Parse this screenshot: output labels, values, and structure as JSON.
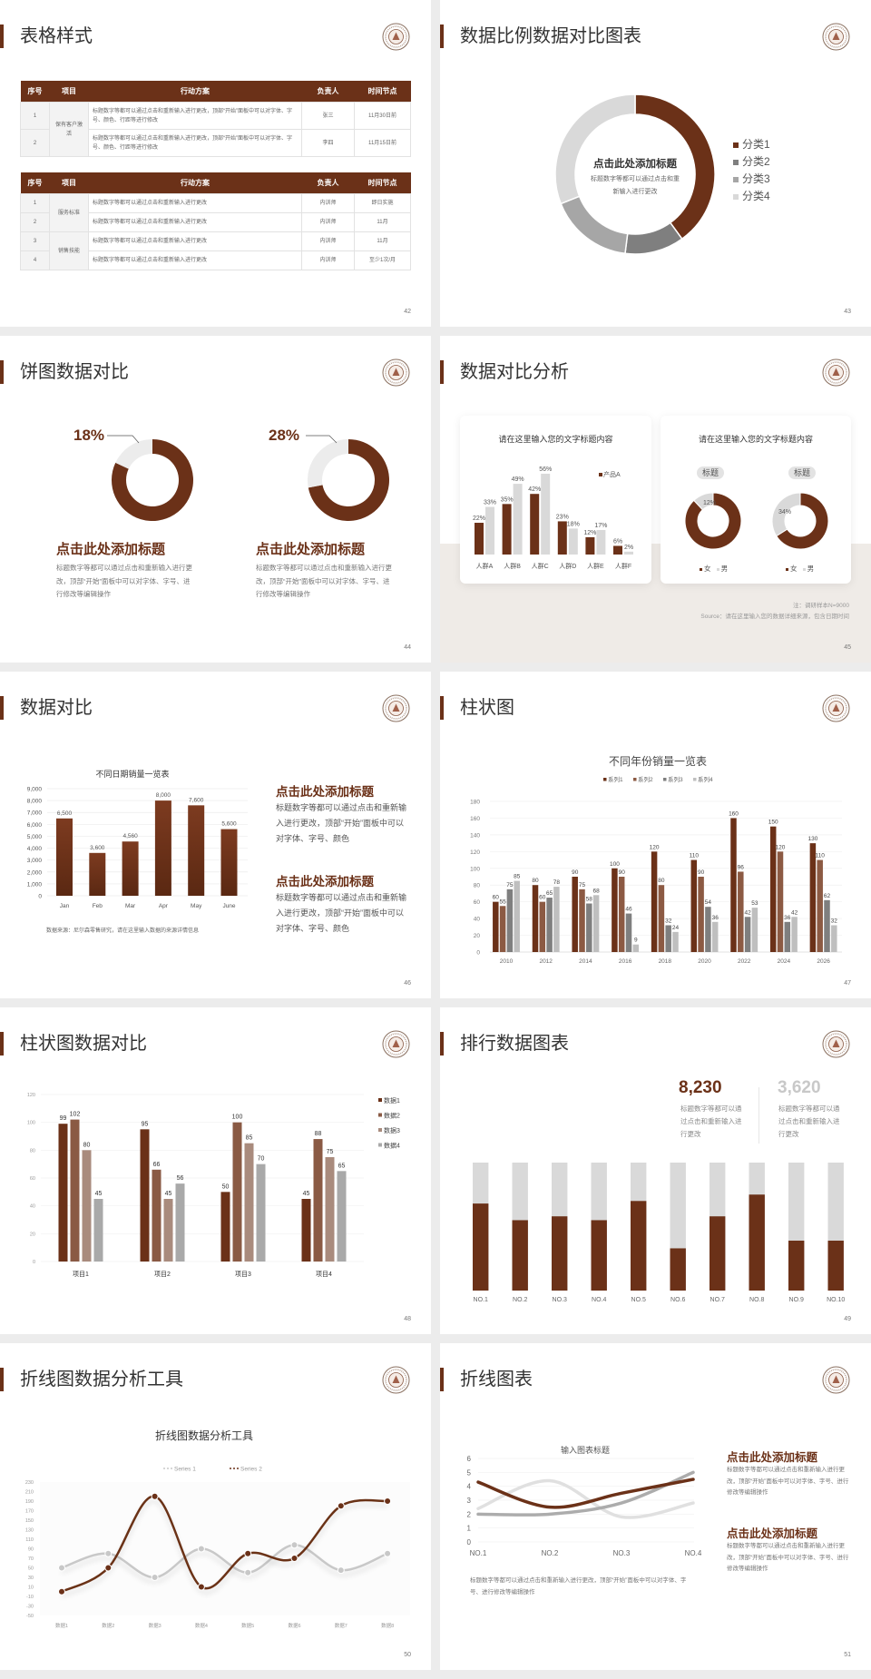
{
  "colors": {
    "accent": "#6b3118",
    "light_gray": "#d9d9d9",
    "mid_gray": "#8c8c8c",
    "background": "#ececec",
    "beige": "#efebe7"
  },
  "logo_icon": "university-seal",
  "s42": {
    "title": "表格样式",
    "page": "42",
    "headers": [
      "序号",
      "项目",
      "行动方案",
      "负责人",
      "时间节点"
    ],
    "table1": {
      "group": "保有客户激活",
      "rows": [
        [
          "1",
          "标题数字等都可以通过点击和重新输入进行更改，顶部“开始”面板中可以对字体、字号、颜色、行距等进行修改",
          "张三",
          "11月30日前"
        ],
        [
          "2",
          "标题数字等都可以通过点击和重新输入进行更改，顶部“开始”面板中可以对字体、字号、颜色、行距等进行修改",
          "李四",
          "11月15日前"
        ]
      ]
    },
    "table2": {
      "groups": [
        "服务标准",
        "销售技能"
      ],
      "rows": [
        [
          "1",
          "标题数字等都可以通过点击和重新输入进行更改",
          "内训师",
          "即日实施"
        ],
        [
          "2",
          "标题数字等都可以通过点击和重新输入进行更改",
          "内训师",
          "11月"
        ],
        [
          "3",
          "标题数字等都可以通过点击和重新输入进行更改",
          "内训师",
          "11月"
        ],
        [
          "4",
          "标题数字等都可以通过点击和重新输入进行更改",
          "内训师",
          "至少1次/月"
        ]
      ]
    }
  },
  "s43": {
    "title": "数据比例数据对比图表",
    "page": "43",
    "center_title": "点击此处添加标题",
    "center_text": "标题数字等都可以通过点击和重新输入进行更改"
  },
  "s44": {
    "title": "饼图数据对比",
    "page": "44",
    "items": [
      {
        "heading": "点击此处添加标题",
        "text": "标题数字等都可以通过点击和重新输入进行更改，顶部“开始”面板中可以对字体、字号、进行修改等编辑操作"
      },
      {
        "heading": "点击此处添加标题",
        "text": "标题数字等都可以通过点击和重新输入进行更改，顶部“开始”面板中可以对字体、字号、进行修改等编辑操作"
      }
    ]
  },
  "s45": {
    "title": "数据对比分析",
    "page": "45",
    "card1_title": "请在这里输入您的文字标题内容",
    "card2_title": "请在这里输入您的文字标题内容",
    "pills": [
      "标题",
      "标题"
    ],
    "note": "注：调研样本N=9000",
    "source": "Source：请在这里输入您的数据详细来源，包含日期时间"
  },
  "s46": {
    "title": "数据对比",
    "page": "46",
    "source": "数据来源：尼尔森零售研究，请在这里输入数据的来源详情信息",
    "blocks": [
      {
        "heading": "点击此处添加标题",
        "text": "标题数字等都可以通过点击和重新输入进行更改，顶部“开始”面板中可以对字体、字号、颜色"
      },
      {
        "heading": "点击此处添加标题",
        "text": "标题数字等都可以通过点击和重新输入进行更改，顶部“开始”面板中可以对字体、字号、颜色"
      }
    ]
  },
  "s47": {
    "title": "柱状图",
    "page": "47"
  },
  "s48": {
    "title": "柱状图数据对比",
    "page": "48"
  },
  "s49": {
    "title": "排行数据图表",
    "page": "49",
    "stats": [
      {
        "value": "8,230",
        "text": "标题数字等都可以通过点击和重新输入进行更改"
      },
      {
        "value": "3,620",
        "text": "标题数字等都可以通过点击和重新输入进行更改"
      }
    ]
  },
  "s50": {
    "title": "折线图数据分析工具",
    "page": "50"
  },
  "s51": {
    "title": "折线图表",
    "page": "51",
    "caption": "标题数字等都可以通过点击和重新输入进行更改，顶部“开始”面板中可以对字体、字号、进行修改等编辑操作",
    "blocks": [
      {
        "heading": "点击此处添加标题",
        "text": "标题数字等都可以通过点击和重新输入进行更改，顶部“开始”面板中可以对字体、字号、进行修改等编辑操作"
      },
      {
        "heading": "点击此处添加标题",
        "text": "标题数字等都可以通过点击和重新输入进行更改，顶部“开始”面板中可以对字体、字号、进行修改等编辑操作"
      }
    ]
  },
  "chart_data": [
    {
      "type": "pie",
      "variant": "donut",
      "categories": [
        "分类1",
        "分类2",
        "分类3",
        "分类4"
      ],
      "values": [
        40,
        12,
        17,
        31
      ],
      "colors": [
        "#6b3118",
        "#7f7f7f",
        "#a6a6a6",
        "#d9d9d9"
      ],
      "legend": "right"
    },
    {
      "type": "pie",
      "variant": "donut",
      "values": [
        82,
        18
      ],
      "label": "18%",
      "colors": [
        "#6b3118",
        "#ececec"
      ]
    },
    {
      "type": "pie",
      "variant": "donut",
      "values": [
        72,
        28
      ],
      "label": "28%",
      "colors": [
        "#6b3118",
        "#ececec"
      ]
    },
    {
      "type": "bar",
      "categories": [
        "人群A",
        "人群B",
        "人群C",
        "人群D",
        "人群E",
        "人群F"
      ],
      "series": [
        {
          "name": "产品A",
          "values": [
            22,
            35,
            42,
            23,
            12,
            6
          ],
          "color": "#6b3118"
        },
        {
          "values": [
            33,
            49,
            56,
            18,
            17,
            2
          ],
          "color": "#d9d9d9"
        }
      ],
      "unit": "%",
      "legend": "top-right"
    },
    {
      "type": "pie",
      "variant": "donut",
      "categories": [
        "女",
        "男"
      ],
      "values": [
        88,
        12
      ],
      "label": "12%",
      "colors": [
        "#6b3118",
        "#d9d9d9"
      ],
      "legend": "bottom"
    },
    {
      "type": "pie",
      "variant": "donut",
      "categories": [
        "女",
        "男"
      ],
      "values": [
        66,
        34
      ],
      "label": "34%",
      "colors": [
        "#6b3118",
        "#d9d9d9"
      ],
      "legend": "bottom"
    },
    {
      "type": "bar",
      "title": "不同日期销量一览表",
      "categories": [
        "Jan",
        "Feb",
        "Mar",
        "Apr",
        "May",
        "June"
      ],
      "values": [
        6500,
        3600,
        4560,
        8000,
        7600,
        5600
      ],
      "value_labels": [
        "6,500",
        "3,600",
        "4,560",
        "8,000",
        "7,600",
        "5,600"
      ],
      "ylim": [
        0,
        9000
      ],
      "yticks": [
        "0",
        "1,000",
        "2,000",
        "3,000",
        "4,000",
        "5,000",
        "6,000",
        "7,000",
        "8,000",
        "9,000"
      ],
      "grid": true
    },
    {
      "type": "bar",
      "title": "不同年份销量一览表",
      "categories": [
        "2010",
        "2012",
        "2014",
        "2016",
        "2018",
        "2020",
        "2022",
        "2024",
        "2026"
      ],
      "series": [
        {
          "name": "系列1",
          "values": [
            60,
            80,
            90,
            100,
            120,
            110,
            160,
            150,
            130
          ],
          "color": "#6b3118"
        },
        {
          "name": "系列2",
          "values": [
            55,
            60,
            75,
            90,
            80,
            90,
            96,
            120,
            110
          ],
          "color": "#8c5a43"
        },
        {
          "name": "系列3",
          "values": [
            75,
            65,
            58,
            46,
            32,
            54,
            42,
            36,
            62
          ],
          "color": "#7f7f7f"
        },
        {
          "name": "系列4",
          "values": [
            85,
            78,
            68,
            9,
            24,
            36,
            53,
            42,
            32
          ],
          "color": "#bfbfbf"
        }
      ],
      "ylim": [
        0,
        180
      ],
      "yticks": [
        "0",
        "20",
        "40",
        "60",
        "80",
        "100",
        "120",
        "140",
        "160",
        "180"
      ],
      "legend": "top",
      "grid": true
    },
    {
      "type": "bar",
      "categories": [
        "项目1",
        "项目2",
        "项目3",
        "项目4"
      ],
      "series": [
        {
          "name": "数据1",
          "values": [
            99,
            95,
            50,
            45
          ],
          "color": "#6b3118"
        },
        {
          "name": "数据2",
          "values": [
            102,
            66,
            100,
            88
          ],
          "color": "#8a5a44"
        },
        {
          "name": "数据3",
          "values": [
            80,
            45,
            85,
            75
          ],
          "color": "#a98b7d"
        },
        {
          "name": "数据4",
          "values": [
            45,
            56,
            70,
            65
          ],
          "color": "#a9a9a9"
        }
      ],
      "ylim": [
        0,
        120
      ],
      "yticks": [
        "0",
        "20",
        "40",
        "60",
        "80",
        "100",
        "120"
      ],
      "legend": "right",
      "grid": true
    },
    {
      "type": "bar",
      "stacked": true,
      "categories": [
        "NO.1",
        "NO.2",
        "NO.3",
        "NO.4",
        "NO.5",
        "NO.6",
        "NO.7",
        "NO.8",
        "NO.9",
        "NO.10"
      ],
      "values": [
        68,
        55,
        58,
        55,
        70,
        33,
        58,
        75,
        39,
        39
      ],
      "max": 100,
      "colors": [
        "#6b3118",
        "#d9d9d9"
      ]
    },
    {
      "type": "line",
      "title": "折线图数据分析工具",
      "categories": [
        "数据1",
        "数据2",
        "数据3",
        "数据4",
        "数据5",
        "数据6",
        "数据7",
        "数据8"
      ],
      "series": [
        {
          "name": "Series 1",
          "values": [
            50,
            80,
            30,
            90,
            40,
            98,
            45,
            80
          ],
          "color": "#c8c8c8"
        },
        {
          "name": "Series 2",
          "values": [
            0,
            50,
            200,
            10,
            80,
            70,
            180,
            190
          ],
          "color": "#6b3118"
        }
      ],
      "ylim": [
        -50,
        230
      ],
      "yticks": [
        "-50",
        "-30",
        "-10",
        "10",
        "30",
        "50",
        "70",
        "90",
        "110",
        "130",
        "150",
        "170",
        "190",
        "210",
        "230"
      ],
      "smooth": true,
      "legend": "top"
    },
    {
      "type": "line",
      "title": "输入图表标题",
      "categories": [
        "NO.1",
        "NO.2",
        "NO.3",
        "NO.4"
      ],
      "series": [
        {
          "values": [
            4.3,
            2.5,
            3.5,
            4.5
          ],
          "color": "#6b3118"
        },
        {
          "values": [
            2.4,
            4.4,
            1.8,
            2.8
          ],
          "color": "#e0e0e0"
        },
        {
          "values": [
            2,
            2,
            2.8,
            5
          ],
          "color": "#acacac"
        }
      ],
      "ylim": [
        0,
        6
      ],
      "yticks": [
        "0",
        "1",
        "2",
        "3",
        "4",
        "5",
        "6"
      ],
      "smooth": true,
      "grid": true
    }
  ]
}
